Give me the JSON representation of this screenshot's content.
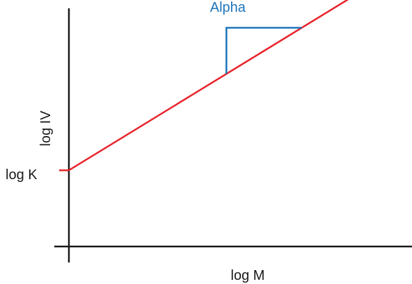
{
  "chart_data": {
    "type": "line",
    "title": "",
    "xlabel": "log M",
    "ylabel": "log IV",
    "scale": "log-log",
    "grid": false,
    "legend": "none",
    "xlim": [
      0,
      10
    ],
    "ylim": [
      0,
      10
    ],
    "series": [
      {
        "x": [
          0,
          10
        ],
        "y": [
          3.2,
          12.0
        ],
        "color": "#e8232b"
      }
    ],
    "annotations": [
      {
        "type": "intercept-tick",
        "label": "log K",
        "y": 3.2,
        "color": "#e8232b"
      },
      {
        "type": "slope-triangle",
        "label": "Alpha",
        "x_start": 4.6,
        "x_end": 6.8,
        "color": "#1b75bc"
      }
    ],
    "colors": {
      "axis": "#1a1a1a",
      "line": "#e8232b",
      "annotation": "#1b75bc"
    }
  }
}
